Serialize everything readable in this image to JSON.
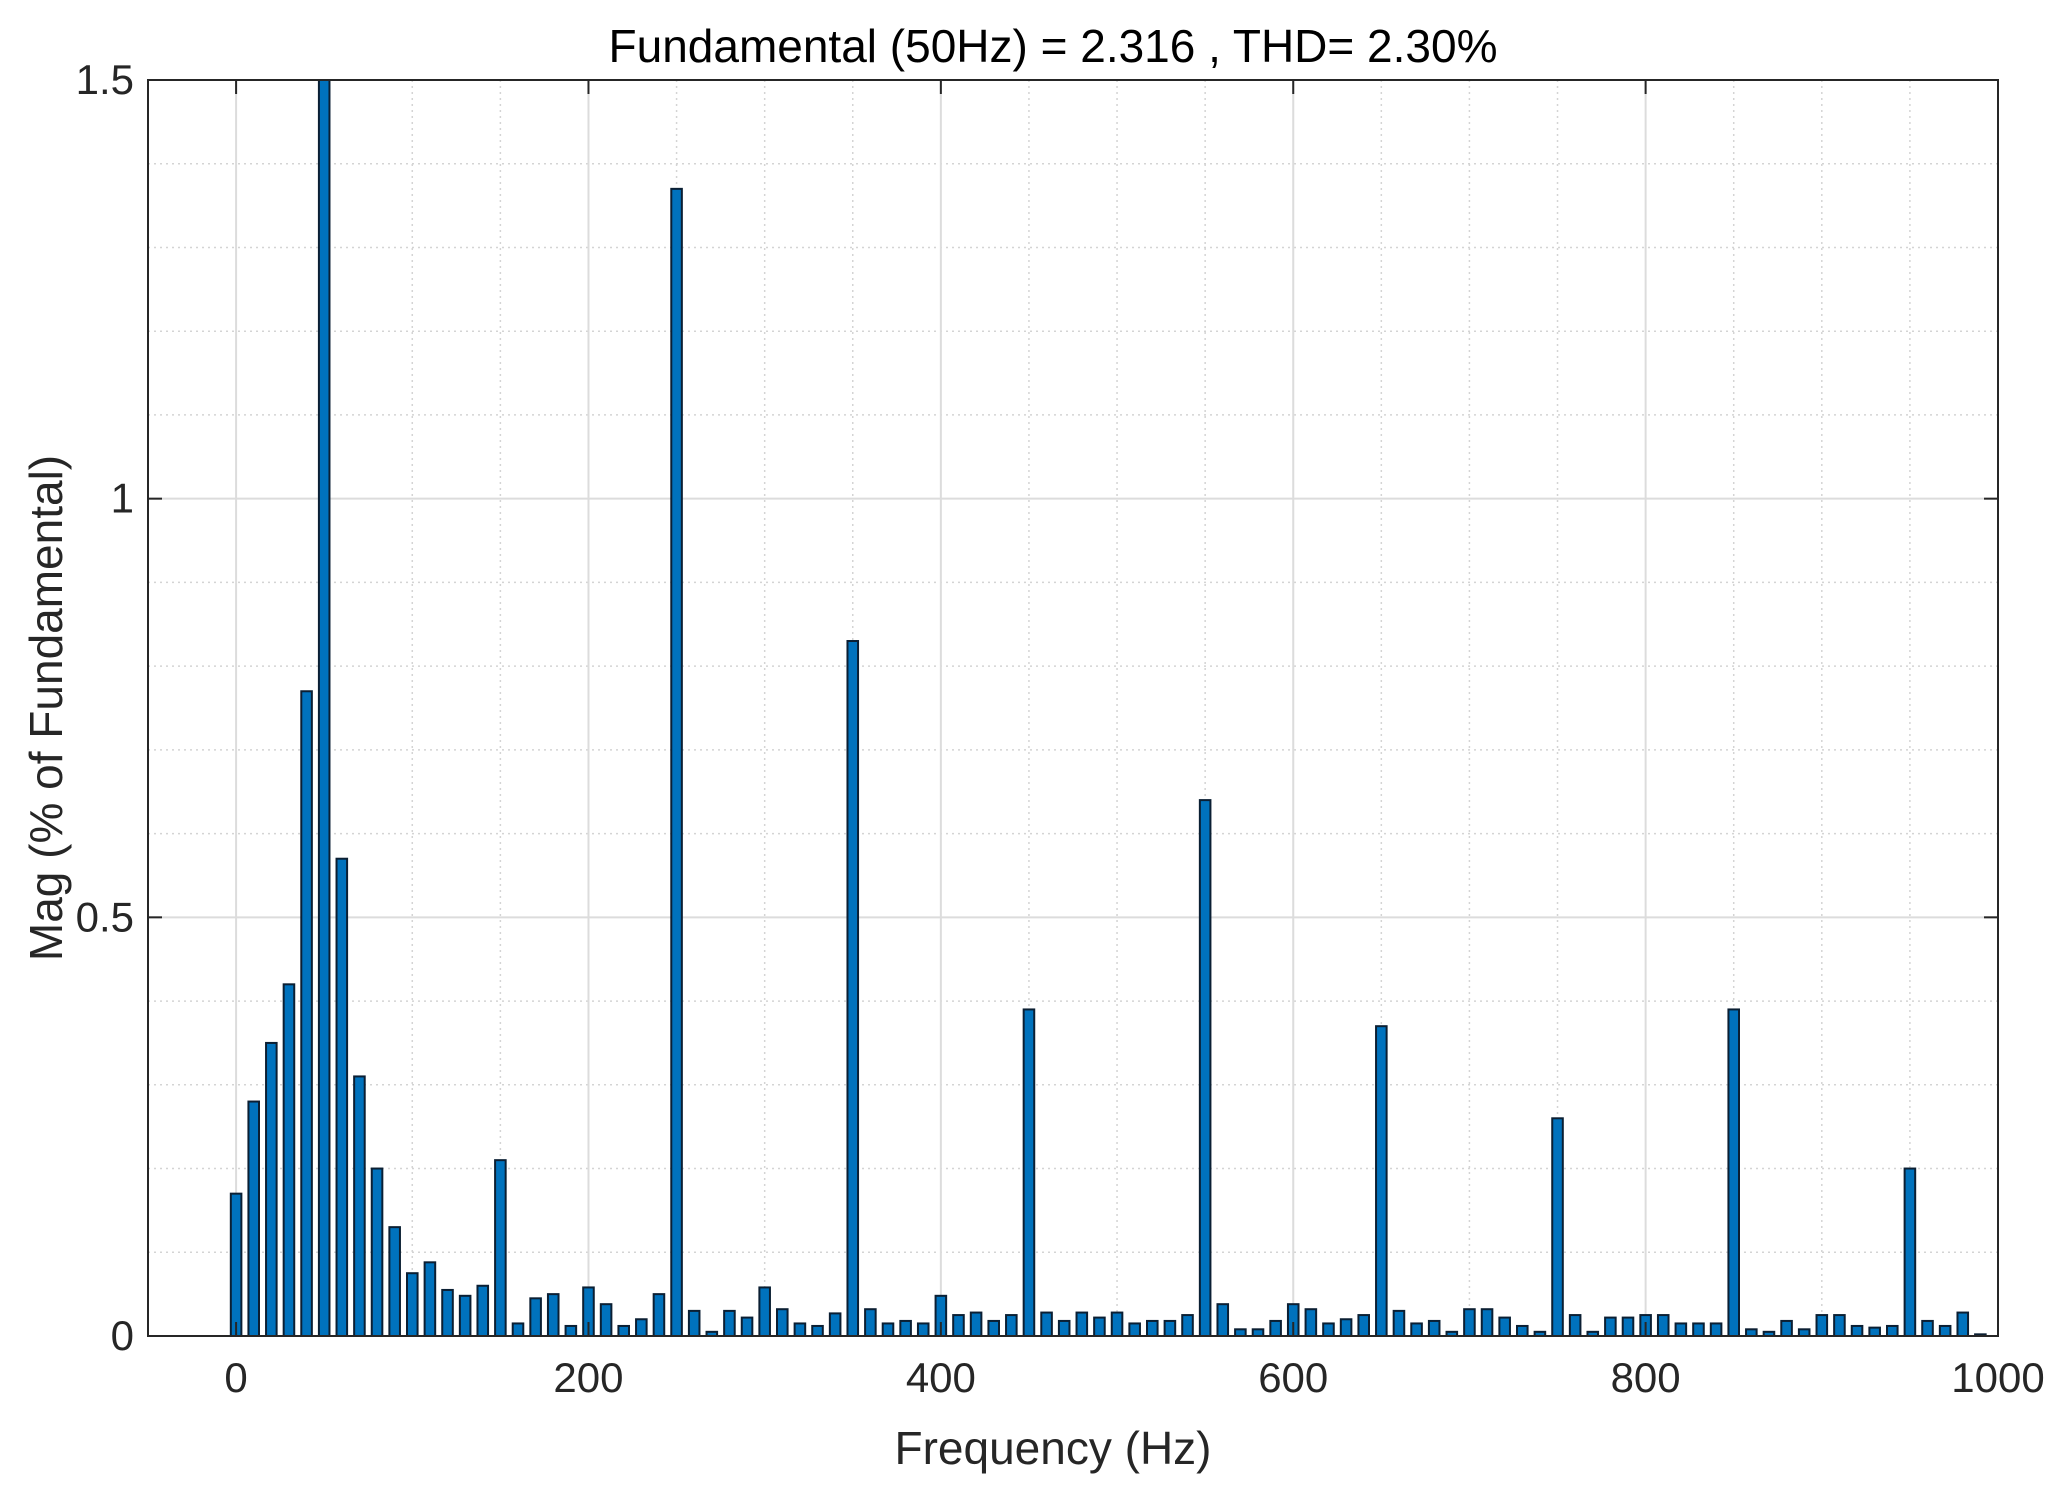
{
  "chart_data": {
    "type": "bar",
    "title": "Fundamental (50Hz) = 2.316 , THD= 2.30%",
    "xlabel": "Frequency (Hz)",
    "ylabel": "Mag (% of Fundamental)",
    "xlim": [
      -50,
      1000
    ],
    "ylim": [
      0,
      1.5
    ],
    "xticks": [
      0,
      200,
      400,
      600,
      800,
      1000
    ],
    "xtick_labels": [
      "0",
      "200",
      "400",
      "600",
      "800",
      "1000"
    ],
    "yticks": [
      0,
      0.5,
      1,
      1.5
    ],
    "ytick_labels": [
      "0",
      "0.5",
      "1",
      "1.5"
    ],
    "grid": true,
    "minor_grid": true,
    "bar_color": "#0072BD",
    "x": [
      0,
      10,
      20,
      30,
      40,
      50,
      60,
      70,
      80,
      90,
      100,
      110,
      120,
      130,
      140,
      150,
      160,
      170,
      180,
      190,
      200,
      210,
      220,
      230,
      240,
      250,
      260,
      270,
      280,
      290,
      300,
      310,
      320,
      330,
      340,
      350,
      360,
      370,
      380,
      390,
      400,
      410,
      420,
      430,
      440,
      450,
      460,
      470,
      480,
      490,
      500,
      510,
      520,
      530,
      540,
      550,
      560,
      570,
      580,
      590,
      600,
      610,
      620,
      630,
      640,
      650,
      660,
      670,
      680,
      690,
      700,
      710,
      720,
      730,
      740,
      750,
      760,
      770,
      780,
      790,
      800,
      810,
      820,
      830,
      840,
      850,
      860,
      870,
      880,
      890,
      900,
      910,
      920,
      930,
      940,
      950,
      960,
      970,
      980,
      990
    ],
    "values": [
      0.17,
      0.28,
      0.35,
      0.42,
      0.77,
      1.5,
      0.57,
      0.31,
      0.2,
      0.13,
      0.075,
      0.088,
      0.055,
      0.048,
      0.06,
      0.21,
      0.015,
      0.045,
      0.05,
      0.012,
      0.058,
      0.038,
      0.012,
      0.02,
      0.05,
      1.37,
      0.03,
      0.005,
      0.03,
      0.022,
      0.058,
      0.032,
      0.015,
      0.012,
      0.027,
      0.83,
      0.032,
      0.015,
      0.018,
      0.015,
      0.048,
      0.025,
      0.028,
      0.018,
      0.025,
      0.39,
      0.028,
      0.018,
      0.028,
      0.022,
      0.028,
      0.015,
      0.018,
      0.018,
      0.025,
      0.64,
      0.038,
      0.008,
      0.008,
      0.018,
      0.038,
      0.032,
      0.015,
      0.02,
      0.025,
      0.37,
      0.03,
      0.015,
      0.018,
      0.005,
      0.032,
      0.032,
      0.022,
      0.012,
      0.005,
      0.26,
      0.025,
      0.005,
      0.022,
      0.022,
      0.025,
      0.025,
      0.015,
      0.015,
      0.015,
      0.39,
      0.008,
      0.005,
      0.018,
      0.008,
      0.025,
      0.025,
      0.012,
      0.01,
      0.012,
      0.2,
      0.018,
      0.012,
      0.028,
      0.002
    ]
  }
}
